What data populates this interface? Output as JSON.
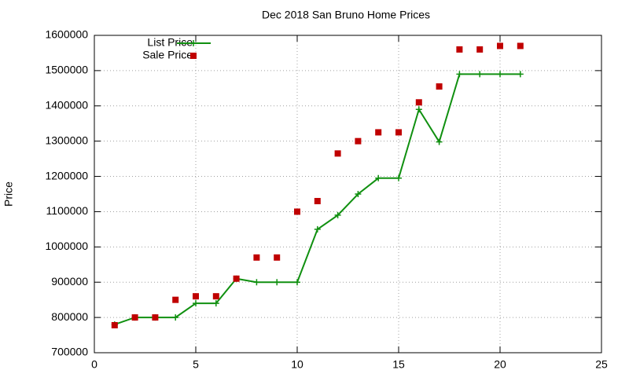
{
  "chart_data": {
    "type": "line",
    "title": "Dec 2018 San Bruno Home Prices",
    "y_label": "Price",
    "x": [
      1,
      2,
      3,
      4,
      5,
      6,
      7,
      8,
      9,
      10,
      11,
      12,
      13,
      14,
      15,
      16,
      17,
      18,
      19,
      20,
      21
    ],
    "series": [
      {
        "name": "List Price",
        "color": "#109010",
        "style": "linespoints",
        "values": [
          780000,
          800000,
          800000,
          800000,
          840000,
          840000,
          910000,
          900000,
          900000,
          900000,
          1050000,
          1090000,
          1150000,
          1195000,
          1195000,
          1390000,
          1298000,
          1490000,
          1490000,
          1490000,
          1490000
        ]
      },
      {
        "name": "Sale Price",
        "color": "#c00000",
        "style": "points",
        "values": [
          778000,
          800000,
          800000,
          850000,
          860000,
          860000,
          910000,
          970000,
          970000,
          1100000,
          1130000,
          1265000,
          1300000,
          1325000,
          1325000,
          1410000,
          1455000,
          1560000,
          1560000,
          1570000,
          1570000
        ]
      }
    ],
    "xlim": [
      0,
      25
    ],
    "xticks": [
      0,
      5,
      10,
      15,
      20,
      25
    ],
    "ylim": [
      700000,
      1600000
    ],
    "yticks": [
      700000,
      800000,
      900000,
      1000000,
      1100000,
      1200000,
      1300000,
      1400000,
      1500000,
      1600000
    ],
    "grid": true,
    "legend": "top-left"
  }
}
